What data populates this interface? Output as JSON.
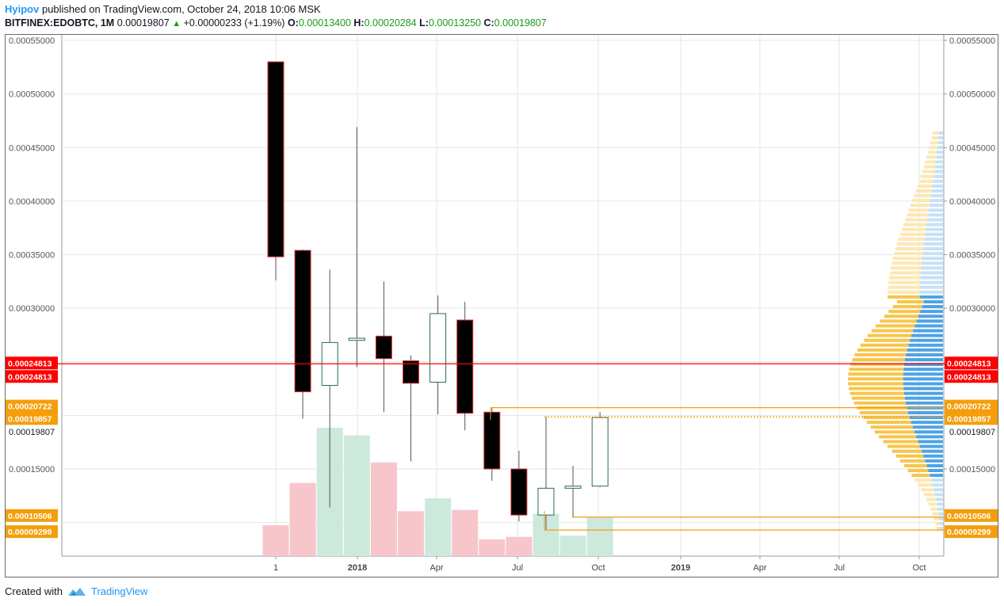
{
  "header": {
    "author": "Hyipov",
    "published_text": "published on TradingView.com, October 24, 2018 10:06 MSK",
    "symbol": "BITFINEX:EDOBTC, 1M",
    "last": "0.00019807",
    "change": "+0.00000233 (+1.19%)",
    "open_label": "O:",
    "open": "0.00013400",
    "high_label": "H:",
    "high": "0.00020284",
    "low_label": "L:",
    "low": "0.00013250",
    "close_label": "C:",
    "close": "0.00019807"
  },
  "footer": {
    "created_with": "Created with",
    "brand": "TradingView",
    "logo_icon": "tradingview-logo-icon"
  },
  "colors": {
    "up_body": "#ffffff",
    "down_body": "#000000",
    "candle_border_up": "#2e6b55",
    "candle_border_down": "#d3343a",
    "wick": "#555555",
    "vol_up": "#cde9dc",
    "vol_down": "#f7c6ca",
    "red_line": "#ff0000",
    "orange_line": "#f59e0b",
    "vp_up": "#f7c54a",
    "vp_down": "#4da3e6",
    "vp_up_faint": "#fde7b3",
    "vp_down_faint": "#c5e1f6",
    "grid": "#e6e6e6"
  },
  "chart_data": {
    "type": "candlestick",
    "title": "",
    "ylim": [
      6e-05,
      0.00056
    ],
    "y_ticks": [
      "0.00055000",
      "0.00050000",
      "0.00045000",
      "0.00040000",
      "0.00035000",
      "0.00030000",
      "0.00015000"
    ],
    "x_ticks": [
      "1",
      "2018",
      "Apr",
      "Jul",
      "Oct",
      "2019",
      "Apr",
      "Jul",
      "Oct"
    ],
    "candles": [
      {
        "date": "2017-10",
        "o": 0.00053,
        "h": 0.00053,
        "l": 0.000326,
        "c": 0.000348
      },
      {
        "date": "2017-11",
        "o": 0.000354,
        "h": 0.000355,
        "l": 0.000197,
        "c": 0.000222
      },
      {
        "date": "2017-12",
        "o": 0.000228,
        "h": 0.000336,
        "l": 0.000114,
        "c": 0.000268
      },
      {
        "date": "2018-01",
        "o": 0.00027,
        "h": 0.000469,
        "l": 0.000245,
        "c": 0.000272
      },
      {
        "date": "2018-02",
        "o": 0.000274,
        "h": 0.000325,
        "l": 0.000203,
        "c": 0.000253
      },
      {
        "date": "2018-03",
        "o": 0.000251,
        "h": 0.000256,
        "l": 0.000157,
        "c": 0.00023
      },
      {
        "date": "2018-04",
        "o": 0.000231,
        "h": 0.000312,
        "l": 0.000201,
        "c": 0.000295
      },
      {
        "date": "2018-05",
        "o": 0.000289,
        "h": 0.000306,
        "l": 0.000186,
        "c": 0.000202
      },
      {
        "date": "2018-06",
        "o": 0.000203,
        "h": 0.000207,
        "l": 0.000139,
        "c": 0.00015
      },
      {
        "date": "2018-07",
        "o": 0.00015,
        "h": 0.000167,
        "l": 0.000101,
        "c": 0.000107
      },
      {
        "date": "2018-08",
        "o": 0.000107,
        "h": 0.000199,
        "l": 9.3e-05,
        "c": 0.000132
      },
      {
        "date": "2018-09",
        "o": 0.000132,
        "h": 0.000153,
        "l": 0.000105,
        "c": 0.000134
      },
      {
        "date": "2018-10",
        "o": 0.000134,
        "h": 0.000203,
        "l": 0.000133,
        "c": 0.000198
      }
    ],
    "volume_relative": [
      0.24,
      0.57,
      1.0,
      0.94,
      0.73,
      0.35,
      0.45,
      0.36,
      0.13,
      0.15,
      0.33,
      0.16,
      0.3
    ],
    "levels": [
      {
        "price": 0.00024813,
        "label": "0.00024813",
        "color": "#ff0000",
        "style": "solid",
        "dual": true
      },
      {
        "price": 0.00020722,
        "label": "0.00020722",
        "color": "#f59e0b",
        "style": "solid"
      },
      {
        "price": 0.00019857,
        "label": "0.00019857",
        "color": "#f59e0b",
        "style": "dotted"
      },
      {
        "price": 0.00010506,
        "label": "0.00010506",
        "color": "#f59e0b",
        "style": "solid"
      },
      {
        "price": 9.299e-05,
        "label": "0.00009299",
        "color": "#f59e0b",
        "style": "solid"
      }
    ],
    "last_price_label": "0.00019807",
    "last_price": 0.00019807
  }
}
